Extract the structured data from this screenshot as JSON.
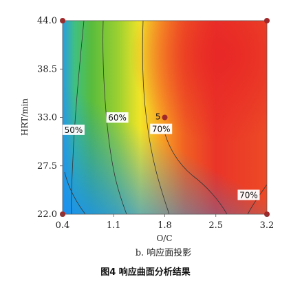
{
  "chart_data": {
    "type": "heatmap",
    "xlabel": "O/C",
    "ylabel": "HRT/min",
    "xlim": [
      0.4,
      3.2
    ],
    "ylim": [
      22.0,
      44.0
    ],
    "xticks": [
      "0.4",
      "1.1",
      "1.8",
      "2.5",
      "3.2"
    ],
    "yticks": [
      "22.0",
      "27.5",
      "33.0",
      "38.5",
      "44.0"
    ],
    "colormap": [
      "#1e90e8",
      "#3cc8a0",
      "#5fc040",
      "#c8e030",
      "#ffe020",
      "#f8a020",
      "#f05020",
      "#e82828"
    ],
    "contours": [
      {
        "label": "50%",
        "x": 0.55,
        "y": 31.6
      },
      {
        "label": "60%",
        "x": 1.15,
        "y": 33.0
      },
      {
        "label": "70%",
        "x": 1.75,
        "y": 31.7
      },
      {
        "label": "70%",
        "x": 2.95,
        "y": 24.2
      }
    ],
    "design_points": [
      {
        "x": 0.4,
        "y": 44.0
      },
      {
        "x": 3.2,
        "y": 44.0
      },
      {
        "x": 0.4,
        "y": 22.0
      },
      {
        "x": 3.2,
        "y": 22.0
      },
      {
        "x": 1.8,
        "y": 33.0,
        "label": "5"
      }
    ]
  },
  "subcaption": "b. 响应面投影",
  "caption": "图4  响应曲面分析结果"
}
